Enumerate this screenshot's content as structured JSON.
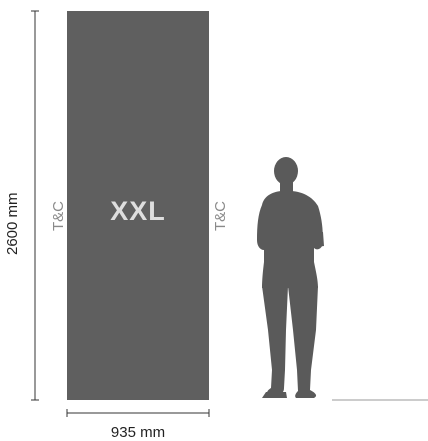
{
  "panel": {
    "label": "XXL",
    "color": "#5f5f5f",
    "label_color": "#dedede"
  },
  "dimensions": {
    "height_label": "2600 mm",
    "width_label": "935 mm"
  },
  "side_labels": {
    "left": "T&C",
    "right": "T&C"
  },
  "figure": {
    "icon": "standing-person-silhouette-icon",
    "color": "#5a5a5a"
  }
}
